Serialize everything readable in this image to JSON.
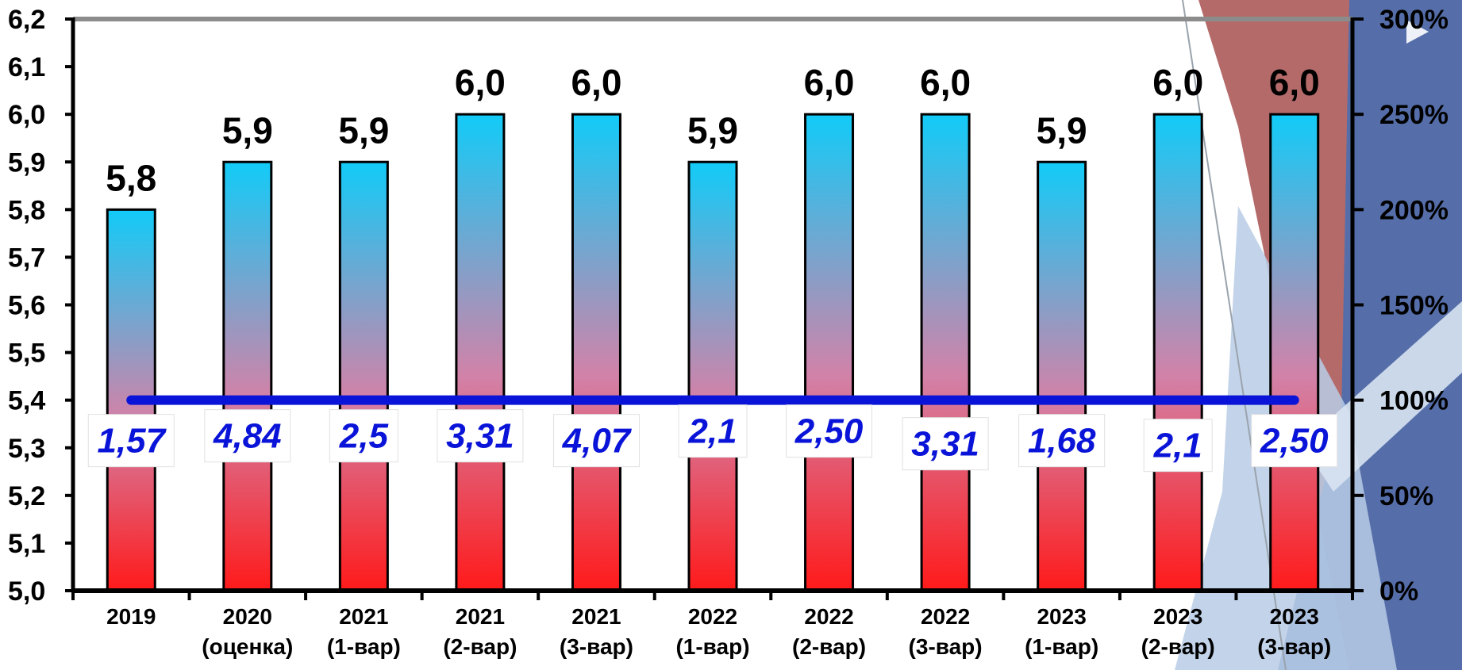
{
  "chart_data": {
    "type": "bar",
    "title": "",
    "xlabel": "",
    "ylabel": "",
    "categories": [
      [
        "2019"
      ],
      [
        "2020",
        "(оценка)"
      ],
      [
        "2021",
        "(1-вар)"
      ],
      [
        "2021",
        "(2-вар)"
      ],
      [
        "2021",
        "(3-вар)"
      ],
      [
        "2022",
        "(1-вар)"
      ],
      [
        "2022",
        "(2-вар)"
      ],
      [
        "2022",
        "(3-вар)"
      ],
      [
        "2023",
        "(1-вар)"
      ],
      [
        "2023",
        "(2-вар)"
      ],
      [
        "2023",
        "(3-вар)"
      ]
    ],
    "ylim": [
      5.0,
      6.2
    ],
    "y2lim": [
      0,
      300
    ],
    "y_ticks": [
      "5,0",
      "5,1",
      "5,2",
      "5,3",
      "5,4",
      "5,5",
      "5,6",
      "5,7",
      "5,8",
      "5,9",
      "6,0",
      "6,1",
      "6,2"
    ],
    "y2_ticks": [
      "0%",
      "50%",
      "100%",
      "150%",
      "200%",
      "250%",
      "300%"
    ],
    "series": [
      {
        "type": "bar",
        "values": [
          5.8,
          5.9,
          5.9,
          6.0,
          6.0,
          5.9,
          6.0,
          6.0,
          5.9,
          6.0,
          6.0
        ],
        "labels": [
          "5,8",
          "5,9",
          "5,9",
          "6,0",
          "6,0",
          "5,9",
          "6,0",
          "6,0",
          "5,9",
          "6,0",
          "6,0"
        ],
        "gradient": [
          "#12cbf8",
          "#d282a8",
          "#ff1a1a"
        ]
      },
      {
        "type": "line",
        "axis": "secondary",
        "values_percent": [
          100,
          100,
          100,
          100,
          100,
          100,
          100,
          100,
          100,
          100,
          100
        ],
        "labels": [
          "1,57",
          "4,84",
          "2,5",
          "3,31",
          "4,07",
          "2,1",
          "2,50",
          "3,31",
          "1,68",
          "2,1",
          "2,50"
        ],
        "color": "#0a14d8"
      }
    ],
    "grid": false,
    "legend": "none"
  },
  "colors": {
    "axis": "#000000",
    "top_border": "#8c8c8c",
    "line": "#0a14d8",
    "decor_red": "#a85050",
    "decor_blue": "#4a6fb0",
    "decor_lightblue": "#b8cde6"
  }
}
